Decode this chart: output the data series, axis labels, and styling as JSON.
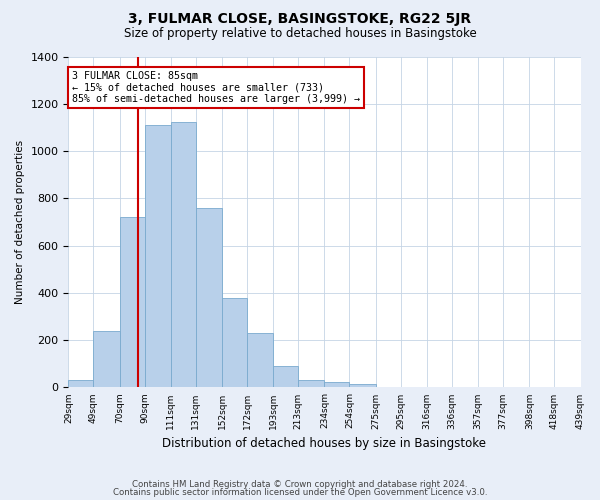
{
  "title": "3, FULMAR CLOSE, BASINGSTOKE, RG22 5JR",
  "subtitle": "Size of property relative to detached houses in Basingstoke",
  "xlabel": "Distribution of detached houses by size in Basingstoke",
  "ylabel": "Number of detached properties",
  "bin_labels": [
    "29sqm",
    "49sqm",
    "70sqm",
    "90sqm",
    "111sqm",
    "131sqm",
    "152sqm",
    "172sqm",
    "193sqm",
    "213sqm",
    "234sqm",
    "254sqm",
    "275sqm",
    "295sqm",
    "316sqm",
    "336sqm",
    "357sqm",
    "377sqm",
    "398sqm",
    "418sqm",
    "439sqm"
  ],
  "bin_edges": [
    29,
    49,
    70,
    90,
    111,
    131,
    152,
    172,
    193,
    213,
    234,
    254,
    275,
    295,
    316,
    336,
    357,
    377,
    398,
    418,
    439
  ],
  "bar_heights": [
    30,
    240,
    720,
    1110,
    1125,
    760,
    380,
    230,
    90,
    30,
    25,
    15,
    0,
    0,
    0,
    0,
    0,
    0,
    0,
    0
  ],
  "bar_color": "#b8d0ea",
  "bar_edge_color": "#7aaace",
  "vline_x": 85,
  "vline_color": "#cc0000",
  "annotation_line1": "3 FULMAR CLOSE: 85sqm",
  "annotation_line2": "← 15% of detached houses are smaller (733)",
  "annotation_line3": "85% of semi-detached houses are larger (3,999) →",
  "annotation_box_color": "#ffffff",
  "annotation_box_edge": "#cc0000",
  "ylim": [
    0,
    1400
  ],
  "yticks": [
    0,
    200,
    400,
    600,
    800,
    1000,
    1200,
    1400
  ],
  "footer1": "Contains HM Land Registry data © Crown copyright and database right 2024.",
  "footer2": "Contains public sector information licensed under the Open Government Licence v3.0.",
  "bg_color": "#e8eef8",
  "plot_bg_color": "#ffffff"
}
